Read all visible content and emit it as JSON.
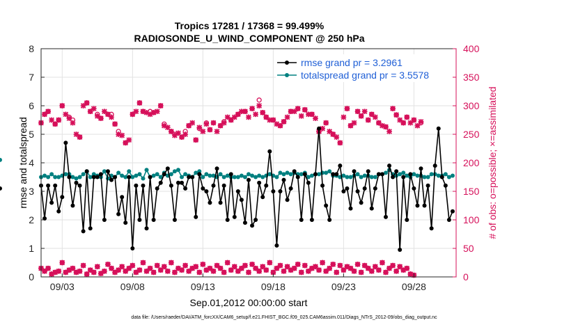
{
  "chart_data": {
    "type": "line",
    "title": [
      "Tropics 17281 / 17368 = 99.499%",
      "RADIOSONDE_U_WIND_COMPONENT @ 250 hPa"
    ],
    "xlabel": "Sep.01,2012 00:00:00 start",
    "ylabel_left": "rmse and totalspread",
    "ylabel_right": "# of obs: o=possible; ×=assimilated",
    "x_ticks": [
      "09/03",
      "09/08",
      "09/13",
      "09/18",
      "09/23",
      "09/28"
    ],
    "x_tick_days": [
      3,
      8,
      13,
      18,
      23,
      28
    ],
    "xlim": [
      1.5,
      31.0
    ],
    "ylim_left": [
      0,
      8
    ],
    "ylim_right": [
      0,
      400
    ],
    "y_ticks_left": [
      0,
      1,
      2,
      3,
      4,
      5,
      6,
      7,
      8
    ],
    "y_ticks_right": [
      0,
      50,
      100,
      150,
      200,
      250,
      300,
      350,
      400
    ],
    "grid": true,
    "legend_position": "top-right",
    "colors": {
      "rmse": "#000000",
      "totalspread": "#008080",
      "obs": "#d6105a",
      "right_axis": "#d6105a",
      "legend_text": "#1f5fd6"
    },
    "time_days": [
      1.5,
      1.75,
      2,
      2.25,
      2.5,
      2.75,
      3,
      3.25,
      3.5,
      3.75,
      4,
      4.25,
      4.5,
      4.75,
      5,
      5.25,
      5.5,
      5.75,
      6,
      6.25,
      6.5,
      6.75,
      7,
      7.25,
      7.5,
      7.75,
      8,
      8.25,
      8.5,
      8.75,
      9,
      9.25,
      9.5,
      9.75,
      10,
      10.25,
      10.5,
      10.75,
      11,
      11.25,
      11.5,
      11.75,
      12,
      12.25,
      12.5,
      12.75,
      13,
      13.25,
      13.5,
      13.75,
      14,
      14.25,
      14.5,
      14.75,
      15,
      15.25,
      15.5,
      15.75,
      16,
      16.25,
      16.5,
      16.75,
      17,
      17.25,
      17.5,
      17.75,
      18,
      18.25,
      18.5,
      18.75,
      19,
      19.25,
      19.5,
      19.75,
      20,
      20.25,
      20.5,
      20.75,
      21,
      21.25,
      21.5,
      21.75,
      22,
      22.25,
      22.5,
      22.75,
      23,
      23.25,
      23.5,
      23.75,
      24,
      24.25,
      24.5,
      24.75,
      25,
      25.25,
      25.5,
      25.75,
      26,
      26.25,
      26.5,
      26.75,
      27,
      27.25,
      27.5,
      27.75,
      28,
      28.25,
      28.5,
      28.75,
      29,
      29.25,
      29.5,
      29.75,
      30,
      30.25,
      30.5,
      30.75
    ],
    "series": [
      {
        "name": "rmse grand pr = 3.2961",
        "style": "line-dot",
        "values": [
          3.2,
          2.05,
          3.2,
          2.6,
          3.2,
          2.3,
          2.8,
          4.7,
          3.5,
          2.5,
          3.3,
          3.2,
          1.6,
          3.7,
          1.7,
          3.5,
          3.5,
          3.6,
          2.0,
          3.7,
          3.4,
          3.5,
          2.2,
          2.8,
          1.9,
          3.5,
          1.0,
          3.2,
          2.0,
          3.2,
          1.7,
          3.5,
          2.0,
          3.1,
          3.3,
          3.6,
          3.8,
          3.2,
          2.0,
          3.3,
          3.3,
          3.1,
          3.5,
          3.5,
          2.1,
          3.6,
          3.1,
          3.0,
          2.6,
          3.2,
          3.8,
          2.6,
          3.2,
          2.0,
          3.6,
          2.1,
          3.0,
          2.7,
          1.9,
          3.4,
          1.8,
          2.0,
          3.3,
          2.8,
          3.2,
          4.4,
          3.0,
          1.1,
          3.0,
          3.4,
          2.7,
          3.1,
          3.7,
          3.5,
          2.0,
          3.6,
          3.3,
          2.0,
          3.6,
          5.2,
          3.2,
          2.5,
          2.0,
          3.6,
          3.6,
          3.9,
          3.0,
          3.1,
          2.4,
          3.7,
          3.0,
          2.6,
          3.1,
          3.7,
          2.4,
          3.1,
          3.6,
          3.6,
          2.1,
          3.9,
          3.5,
          3.7,
          0.95,
          3.5,
          2.0,
          3.6,
          3.1,
          2.5,
          3.8,
          2.5,
          3.2,
          1.7,
          3.9,
          5.2,
          3.5,
          3.2,
          2.0,
          2.3,
          3.1
        ]
      },
      {
        "name": "totalspread grand pr = 3.5578",
        "style": "line-dot",
        "values": [
          3.5,
          3.55,
          3.5,
          3.6,
          3.5,
          3.5,
          3.55,
          3.6,
          3.6,
          3.5,
          3.45,
          3.5,
          3.6,
          3.7,
          3.5,
          3.6,
          3.55,
          3.5,
          3.7,
          3.45,
          3.55,
          3.5,
          3.65,
          3.55,
          3.5,
          3.7,
          3.5,
          3.55,
          3.6,
          3.45,
          3.75,
          3.5,
          3.55,
          3.6,
          3.5,
          3.65,
          3.55,
          3.6,
          3.7,
          3.75,
          3.5,
          3.6,
          3.55,
          3.5,
          3.65,
          3.7,
          3.5,
          3.6,
          3.55,
          3.55,
          3.5,
          3.6,
          3.5,
          3.55,
          3.5,
          3.5,
          3.5,
          3.55,
          3.5,
          3.6,
          3.55,
          3.5,
          3.55,
          3.5,
          3.55,
          3.6,
          3.55,
          3.5,
          3.65,
          3.6,
          3.65,
          3.6,
          3.65,
          3.6,
          3.6,
          3.65,
          3.5,
          3.55,
          3.6,
          3.6,
          3.65,
          3.65,
          3.7,
          3.55,
          3.55,
          3.5,
          3.55,
          3.5,
          3.5,
          3.55,
          3.6,
          3.5,
          3.55,
          3.55,
          3.5,
          3.5,
          3.6,
          3.6,
          3.65,
          3.75,
          3.6,
          3.55,
          3.6,
          3.65,
          3.55,
          3.5,
          3.6,
          3.55,
          3.55,
          3.5,
          3.5,
          3.6,
          3.6,
          3.55,
          3.55,
          3.6,
          3.5,
          3.55,
          4.1
        ]
      },
      {
        "name": "possible",
        "style": "marker-o",
        "values": [
          270,
          285,
          290,
          null,
          268,
          275,
          300,
          null,
          280,
          275,
          null,
          245,
          null,
          305,
          290,
          null,
          285,
          278,
          null,
          285,
          285,
          268,
          255,
          null,
          235,
          null,
          285,
          null,
          305,
          290,
          null,
          290,
          288,
          null,
          300,
          268,
          null,
          255,
          250,
          null,
          245,
          255,
          265,
          null,
          240,
          260,
          null,
          270,
          258,
          270,
          null,
          265,
          272,
          null,
          275,
          null,
          285,
          null,
          290,
          null,
          295,
          null,
          310,
          288,
          280,
          null,
          275,
          null,
          265,
          272,
          null,
          290,
          null,
          295,
          null,
          293,
          null,
          285,
          null,
          255,
          null,
          270,
          null,
          250,
          null,
          235,
          null,
          295,
          265,
          null,
          290,
          282,
          null,
          275,
          285,
          null,
          270,
          null,
          263,
          null,
          295,
          284,
          null,
          270,
          280,
          null,
          275,
          null,
          270
        ]
      },
      {
        "name": "assimilated",
        "style": "marker-x",
        "values": [
          270,
          285,
          290,
          275,
          268,
          275,
          300,
          285,
          278,
          270,
          250,
          245,
          300,
          305,
          290,
          295,
          282,
          278,
          290,
          285,
          280,
          268,
          250,
          248,
          235,
          240,
          285,
          290,
          305,
          290,
          288,
          285,
          288,
          290,
          300,
          265,
          262,
          255,
          248,
          252,
          245,
          250,
          265,
          270,
          240,
          262,
          255,
          268,
          258,
          270,
          255,
          265,
          270,
          280,
          275,
          280,
          285,
          290,
          290,
          280,
          295,
          285,
          300,
          288,
          280,
          275,
          275,
          268,
          265,
          272,
          280,
          290,
          290,
          295,
          282,
          293,
          285,
          285,
          278,
          255,
          260,
          270,
          255,
          250,
          245,
          235,
          280,
          295,
          265,
          270,
          290,
          282,
          290,
          275,
          285,
          280,
          270,
          265,
          263,
          255,
          295,
          284,
          275,
          270,
          280,
          270,
          275,
          265,
          272
        ]
      },
      {
        "name": "possible-low",
        "style": "marker-o",
        "values": [
          15,
          10,
          15,
          5,
          8,
          10,
          25,
          8,
          12,
          15,
          8,
          10,
          20,
          5,
          12,
          8,
          18,
          6,
          10,
          22,
          15,
          8,
          12,
          18,
          10,
          15,
          20,
          8,
          12,
          25,
          10,
          15,
          8,
          20,
          12,
          18,
          10,
          25,
          8,
          15,
          12,
          20,
          10,
          15,
          18,
          8,
          22,
          12,
          15,
          10,
          20,
          15,
          8,
          25,
          12,
          18,
          10,
          15,
          20,
          8,
          22,
          15,
          10,
          18,
          12,
          25,
          8,
          15,
          20,
          10,
          18,
          12,
          15,
          22,
          8,
          20,
          10,
          15,
          18,
          12,
          25,
          10,
          15,
          22,
          8,
          20,
          12,
          18,
          15,
          10,
          22,
          8,
          20,
          15,
          10,
          18,
          12,
          25,
          8,
          15,
          20,
          10,
          18,
          12,
          15,
          5,
          3
        ]
      },
      {
        "name": "assimilated-low",
        "style": "marker-x",
        "values": [
          15,
          10,
          15,
          5,
          8,
          10,
          25,
          8,
          12,
          15,
          8,
          10,
          20,
          5,
          12,
          8,
          18,
          6,
          10,
          22,
          15,
          8,
          12,
          18,
          10,
          15,
          20,
          8,
          12,
          25,
          10,
          15,
          8,
          20,
          12,
          18,
          10,
          25,
          8,
          15,
          12,
          20,
          10,
          15,
          18,
          8,
          22,
          12,
          15,
          10,
          20,
          15,
          8,
          25,
          12,
          18,
          10,
          15,
          20,
          8,
          22,
          15,
          10,
          18,
          12,
          25,
          8,
          15,
          20,
          10,
          18,
          12,
          15,
          22,
          8,
          20,
          10,
          15,
          18,
          12,
          25,
          10,
          15,
          22,
          8,
          20,
          12,
          18,
          15,
          10,
          22,
          8,
          20,
          15,
          10,
          18,
          12,
          25,
          8,
          15,
          20,
          10,
          18,
          12,
          15,
          5,
          3
        ]
      }
    ],
    "legend": [
      {
        "label": "rmse grand pr = 3.2961",
        "series": "rmse"
      },
      {
        "label": "totalspread grand pr = 3.5578",
        "series": "totalspread"
      }
    ]
  },
  "footnote": "data file: /Users/raeder/DAI/ATM_forcXX/CAM6_setup/f.e21.FHIST_BGC.f09_025.CAM6assim.011/Diags_NTrS_2012-09/obs_diag_output.nc"
}
